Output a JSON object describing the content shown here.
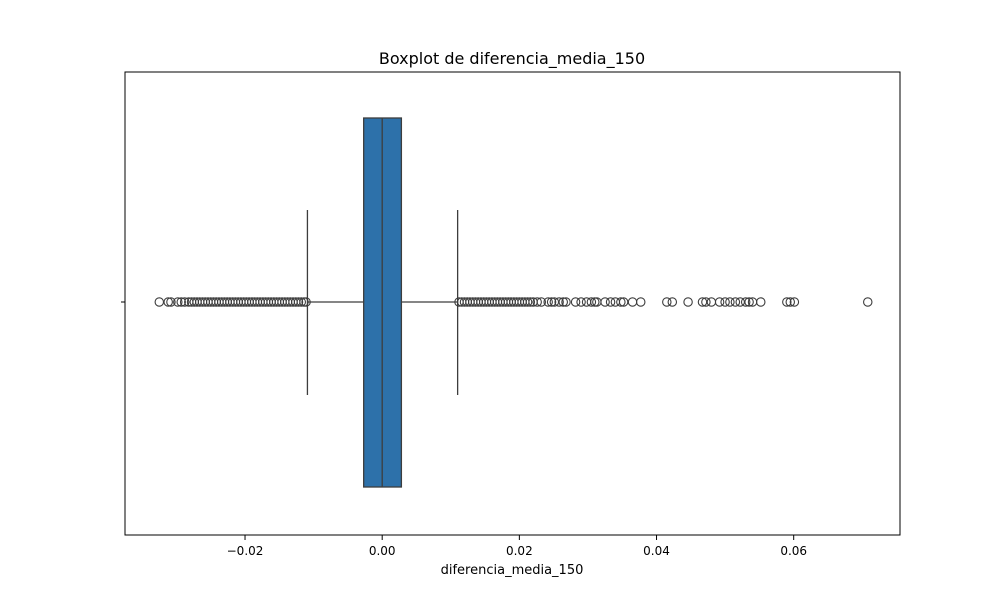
{
  "chart_data": {
    "type": "boxplot",
    "title": "Boxplot de diferencia_media_150",
    "xlabel": "diferencia_media_150",
    "ylabel": "",
    "xlim": [
      -0.0375,
      0.0755
    ],
    "xticks": [
      -0.02,
      0.0,
      0.02,
      0.04,
      0.06
    ],
    "xtick_labels": [
      "−0.02",
      "0.00",
      "0.02",
      "0.04",
      "0.06"
    ],
    "grid": false,
    "box": {
      "q1": -0.0027,
      "median": 0.0,
      "q3": 0.0028,
      "whisker_low": -0.0109,
      "whisker_high": 0.011
    },
    "outliers": [
      -0.0325,
      -0.0312,
      -0.0308,
      -0.0298,
      -0.0293,
      -0.0288,
      -0.0282,
      -0.0278,
      -0.0274,
      -0.027,
      -0.0266,
      -0.0262,
      -0.0258,
      -0.0254,
      -0.025,
      -0.0246,
      -0.0242,
      -0.0238,
      -0.0234,
      -0.023,
      -0.0226,
      -0.0222,
      -0.0218,
      -0.0214,
      -0.021,
      -0.0206,
      -0.0202,
      -0.0198,
      -0.0194,
      -0.019,
      -0.0186,
      -0.0182,
      -0.0178,
      -0.0174,
      -0.017,
      -0.0166,
      -0.0162,
      -0.0158,
      -0.0154,
      -0.015,
      -0.0146,
      -0.0142,
      -0.0138,
      -0.0134,
      -0.013,
      -0.0126,
      -0.0122,
      -0.0118,
      -0.0114,
      -0.0111,
      0.0112,
      0.0116,
      0.012,
      0.0124,
      0.0128,
      0.0132,
      0.0136,
      0.014,
      0.0144,
      0.0148,
      0.0152,
      0.0156,
      0.016,
      0.0164,
      0.0168,
      0.0172,
      0.0176,
      0.018,
      0.0184,
      0.0188,
      0.0192,
      0.0196,
      0.02,
      0.0204,
      0.0208,
      0.0212,
      0.0216,
      0.022,
      0.0226,
      0.0232,
      0.0242,
      0.0247,
      0.0251,
      0.0258,
      0.0264,
      0.0268,
      0.0282,
      0.029,
      0.0298,
      0.0305,
      0.031,
      0.0313,
      0.0325,
      0.0333,
      0.034,
      0.0348,
      0.0352,
      0.0365,
      0.0377,
      0.0415,
      0.0423,
      0.0446,
      0.0467,
      0.0472,
      0.048,
      0.0492,
      0.05,
      0.0507,
      0.0515,
      0.0522,
      0.053,
      0.0535,
      0.054,
      0.0552,
      0.059,
      0.0595,
      0.0601,
      0.0708
    ],
    "colors": {
      "box_fill": "#2d71aa",
      "lines": "#3d3d3d",
      "outlier_edge": "#3d3d3d",
      "frame": "#000000"
    }
  }
}
